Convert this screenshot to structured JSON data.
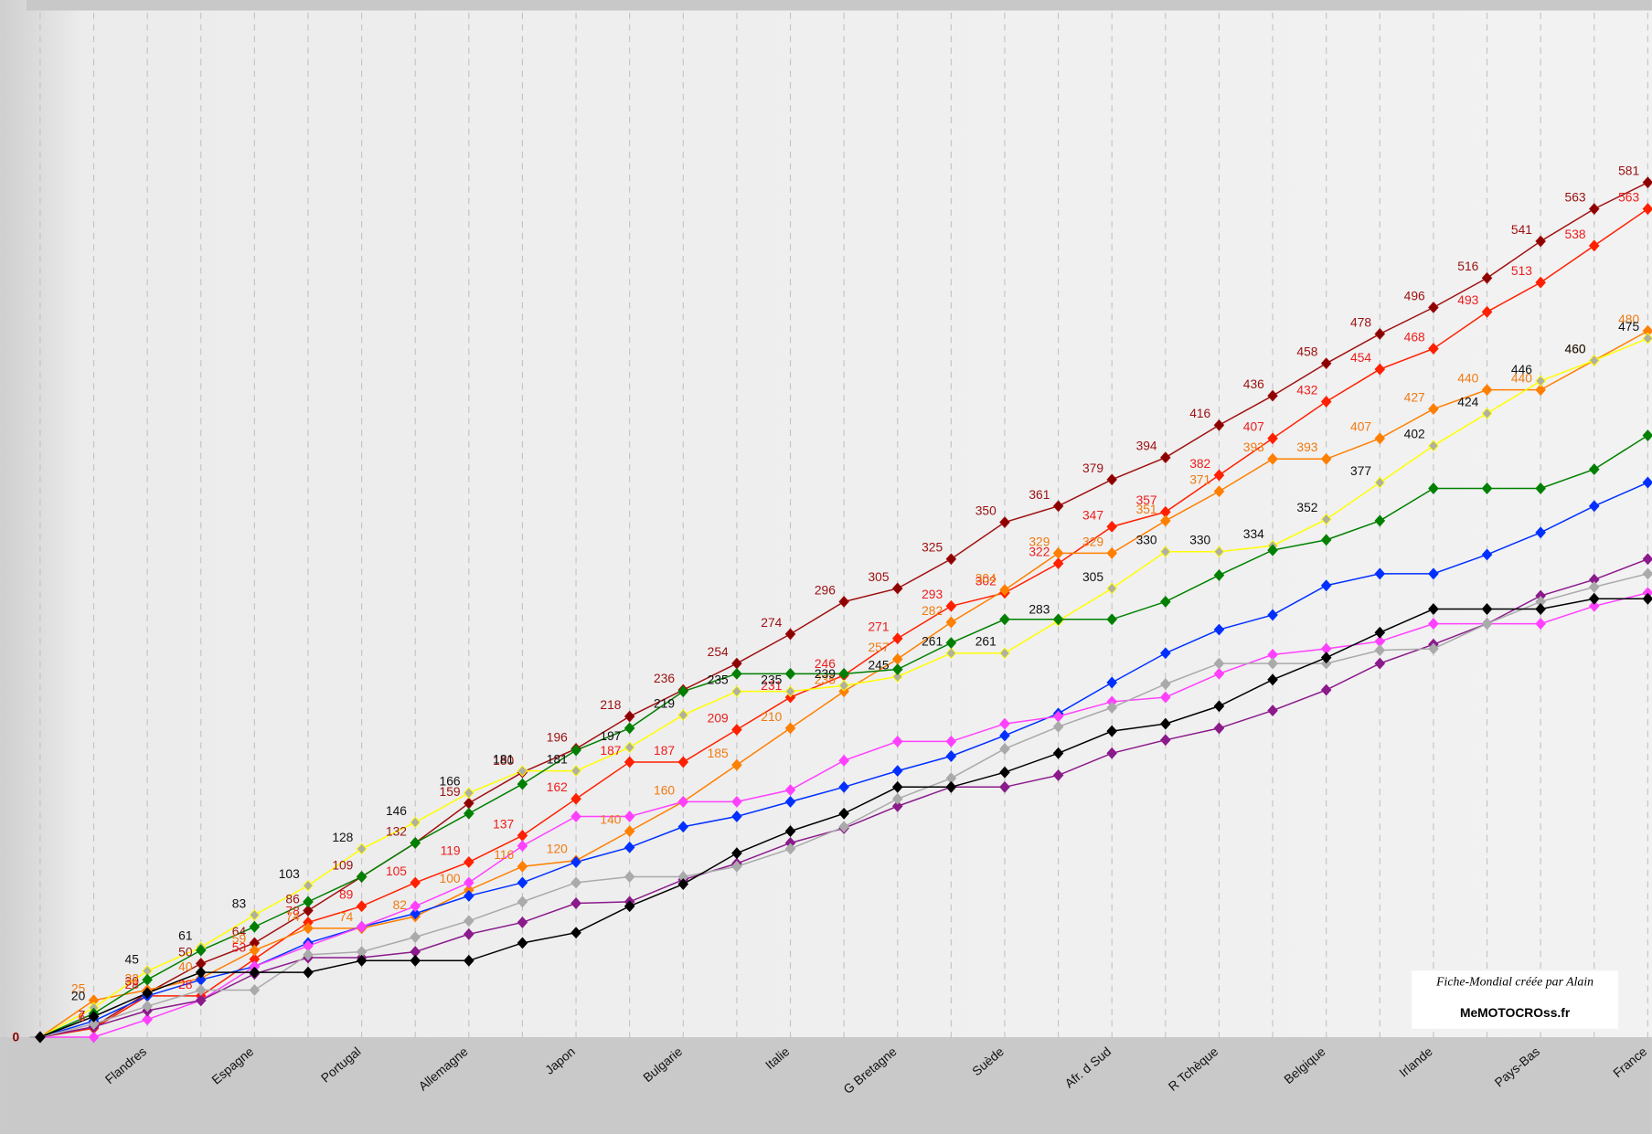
{
  "chart_data": {
    "type": "line",
    "categories": [
      null,
      null,
      "Flandres",
      null,
      "Espagne",
      null,
      "Portugal",
      null,
      "Allemagne",
      null,
      "Japon",
      null,
      "Bulgarie",
      null,
      "Italie",
      null,
      "G Bretagne",
      null,
      "Suède",
      null,
      "Afr. d Sud",
      null,
      "R Tchèque",
      null,
      "Belgique",
      null,
      "Irlande",
      null,
      "Pays-Bas",
      null,
      "France"
    ],
    "ylim": [
      0,
      700
    ],
    "yticks": [
      0
    ],
    "grid": true,
    "annotations": [
      "Fiche-Mondial créée par Alain",
      "MeMOTOCROss.fr"
    ],
    "series": [
      {
        "color": "#a01010",
        "marker": "#8b0000",
        "labels": true,
        "label_color": "#9b1010",
        "values": [
          0,
          7,
          30,
          50,
          64,
          86,
          109,
          132,
          159,
          180,
          196,
          218,
          236,
          254,
          274,
          296,
          305,
          325,
          350,
          361,
          379,
          394,
          416,
          436,
          458,
          478,
          496,
          516,
          541,
          563,
          581
        ]
      },
      {
        "color": "#ff2000",
        "marker": "#ff2000",
        "labels": true,
        "label_color": "#ee1c1c",
        "values": [
          0,
          6,
          28,
          28,
          53,
          78,
          89,
          105,
          119,
          137,
          162,
          187,
          187,
          209,
          231,
          246,
          271,
          293,
          302,
          322,
          347,
          357,
          382,
          407,
          432,
          454,
          468,
          493,
          513,
          538,
          563
        ]
      },
      {
        "color": "#ff7f00",
        "marker": "#ff7f00",
        "labels": true,
        "label_color": "#f07a10",
        "values": [
          0,
          25,
          32,
          40,
          59,
          74,
          74,
          82,
          100,
          116,
          120,
          140,
          160,
          185,
          210,
          235,
          257,
          282,
          304,
          329,
          329,
          351,
          371,
          393,
          393,
          407,
          427,
          440,
          440,
          460,
          480
        ]
      },
      {
        "color": "#ffff00",
        "marker": "#b0b0a0",
        "labels": true,
        "label_color": "#111111",
        "values": [
          0,
          20,
          45,
          61,
          83,
          103,
          128,
          146,
          166,
          181,
          181,
          197,
          219,
          235,
          235,
          239,
          245,
          261,
          261,
          283,
          305,
          330,
          330,
          334,
          352,
          377,
          402,
          424,
          446,
          460,
          475
        ]
      },
      {
        "color": "#008000",
        "marker": "#008000",
        "labels": false,
        "values": [
          0,
          16,
          39,
          59,
          75,
          92,
          109,
          132,
          152,
          172,
          195,
          210,
          235,
          247,
          247,
          247,
          250,
          268,
          284,
          284,
          284,
          296,
          314,
          331,
          338,
          351,
          373,
          373,
          373,
          386,
          409
        ]
      },
      {
        "color": "#0030ff",
        "marker": "#0030ff",
        "labels": false,
        "values": [
          0,
          11,
          28,
          39,
          48,
          64,
          75,
          84,
          96,
          105,
          119,
          129,
          143,
          150,
          160,
          170,
          181,
          191,
          205,
          220,
          241,
          261,
          277,
          287,
          307,
          315,
          315,
          328,
          343,
          361,
          377
        ]
      },
      {
        "color": "#ff40ff",
        "marker": "#ff40ff",
        "labels": false,
        "values": [
          0,
          0,
          12,
          25,
          48,
          62,
          75,
          89,
          105,
          130,
          150,
          150,
          160,
          160,
          168,
          188,
          201,
          201,
          213,
          218,
          228,
          231,
          247,
          260,
          264,
          269,
          281,
          281,
          281,
          293,
          302
        ]
      },
      {
        "color": "#8b1a8b",
        "marker": "#8b1a8b",
        "labels": false,
        "values": [
          0,
          7,
          18,
          25,
          43,
          54,
          54,
          58,
          70,
          78,
          91,
          92,
          107,
          118,
          132,
          142,
          157,
          170,
          170,
          178,
          193,
          202,
          210,
          222,
          236,
          254,
          267,
          281,
          300,
          311,
          325
        ]
      },
      {
        "color": "#aaaaaa",
        "marker": "#aaaaaa",
        "labels": false,
        "values": [
          0,
          9,
          21,
          32,
          32,
          56,
          58,
          68,
          79,
          92,
          105,
          109,
          109,
          116,
          128,
          143,
          162,
          176,
          196,
          211,
          224,
          240,
          254,
          254,
          254,
          263,
          264,
          281,
          296,
          306,
          315
        ]
      },
      {
        "color": "#000000",
        "marker": "#000000",
        "labels": false,
        "values": [
          0,
          14,
          30,
          44,
          44,
          44,
          52,
          52,
          52,
          64,
          71,
          89,
          104,
          125,
          140,
          152,
          170,
          170,
          180,
          193,
          208,
          213,
          225,
          243,
          258,
          275,
          291,
          291,
          291,
          298,
          298
        ]
      }
    ]
  }
}
